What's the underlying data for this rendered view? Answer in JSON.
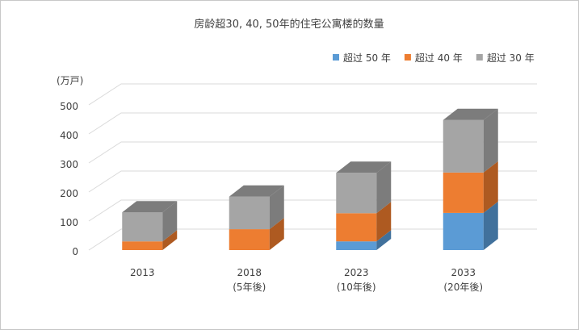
{
  "chart_data": {
    "type": "bar3d_stacked",
    "title": "房龄超30, 40, 50年的住宅公寓楼的数量",
    "y_axis_label": "(万戸)",
    "categories": [
      "2013",
      "2018",
      "2023",
      "2033"
    ],
    "category_notes": [
      null,
      "(5年後)",
      "(10年後)",
      "(20年後)"
    ],
    "series": [
      {
        "name": "超过 50 年",
        "color": "#5b9bd5",
        "side_color": "#41719c",
        "values": [
          0,
          0,
          30,
          128
        ]
      },
      {
        "name": "超过 40 年",
        "color": "#ed7d31",
        "side_color": "#ae5a21",
        "values": [
          30,
          72,
          97,
          139
        ]
      },
      {
        "name": "超过 30 年",
        "color": "#a5a5a5",
        "side_color": "#7c7c7c",
        "values": [
          100,
          112,
          139,
          181
        ]
      }
    ],
    "ylim": [
      0,
      500
    ],
    "yticks": [
      0,
      100,
      200,
      300,
      400,
      500
    ],
    "grid": true,
    "legend": "top-right"
  }
}
